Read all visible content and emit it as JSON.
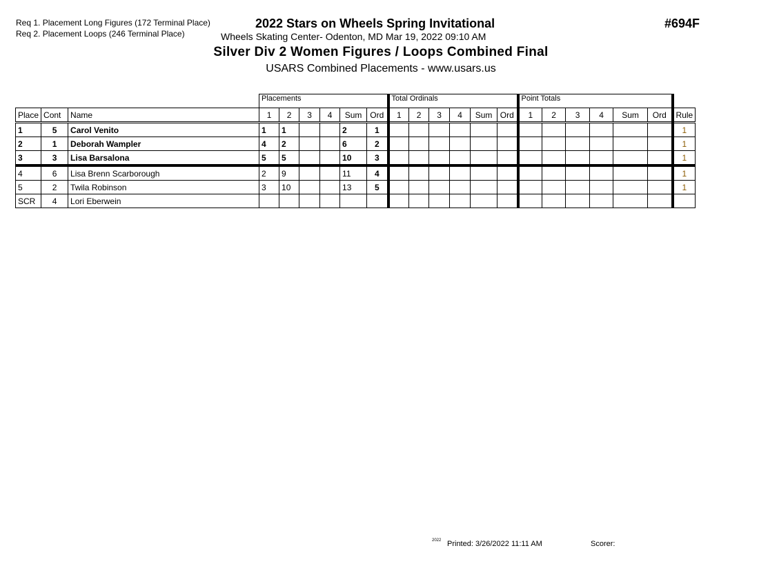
{
  "header": {
    "requirements": [
      "Req  1.  Placement Long Figures (172 Terminal Place)",
      "Req  2.  Placement Loops (246 Terminal Place)"
    ],
    "title": "2022 Stars on Wheels Spring Invitational",
    "venue": "Wheels Skating Center- Odenton, MD  Mar 19, 2022  09:10 AM",
    "event": "Silver Div 2 Women Figures / Loops Combined Final",
    "subtitle": "USARS Combined Placements - www.usars.us",
    "event_number": "#694F"
  },
  "table": {
    "groups": [
      "Placements",
      "Total Ordinals",
      "Point Totals"
    ],
    "columns": [
      "Place",
      "Cont",
      "Name",
      "1",
      "2",
      "3",
      "4",
      "Sum",
      "Ord",
      "1",
      "2",
      "3",
      "4",
      "Sum",
      "Ord",
      "1",
      "2",
      "3",
      "4",
      "Sum",
      "Ord",
      "Rule"
    ],
    "rows": [
      {
        "place": "1",
        "cont": "5",
        "name": "Carol Venito",
        "p1": "1",
        "p2": "1",
        "p3": "",
        "p4": "",
        "sum": "2",
        "ord": "1",
        "rule": "1"
      },
      {
        "place": "2",
        "cont": "1",
        "name": "Deborah Wampler",
        "p1": "4",
        "p2": "2",
        "p3": "",
        "p4": "",
        "sum": "6",
        "ord": "2",
        "rule": "1"
      },
      {
        "place": "3",
        "cont": "3",
        "name": "Lisa Barsalona",
        "p1": "5",
        "p2": "5",
        "p3": "",
        "p4": "",
        "sum": "10",
        "ord": "3",
        "rule": "1"
      },
      {
        "place": "4",
        "cont": "6",
        "name": "Lisa Brenn Scarborough",
        "p1": "2",
        "p2": "9",
        "p3": "",
        "p4": "",
        "sum": "11",
        "ord": "4",
        "rule": "1"
      },
      {
        "place": "5",
        "cont": "2",
        "name": "Twila Robinson",
        "p1": "3",
        "p2": "10",
        "p3": "",
        "p4": "",
        "sum": "13",
        "ord": "5",
        "rule": "1"
      },
      {
        "place": "SCR",
        "cont": "4",
        "name": "Lori Eberwein",
        "p1": "",
        "p2": "",
        "p3": "",
        "p4": "",
        "sum": "",
        "ord": "",
        "rule": ""
      }
    ]
  },
  "footer": {
    "mark": "2022",
    "printed": "Printed:  3/26/2022  11:11 AM",
    "scorer": "Scorer:"
  },
  "colors": {
    "rule_text": "#8a5a00"
  }
}
